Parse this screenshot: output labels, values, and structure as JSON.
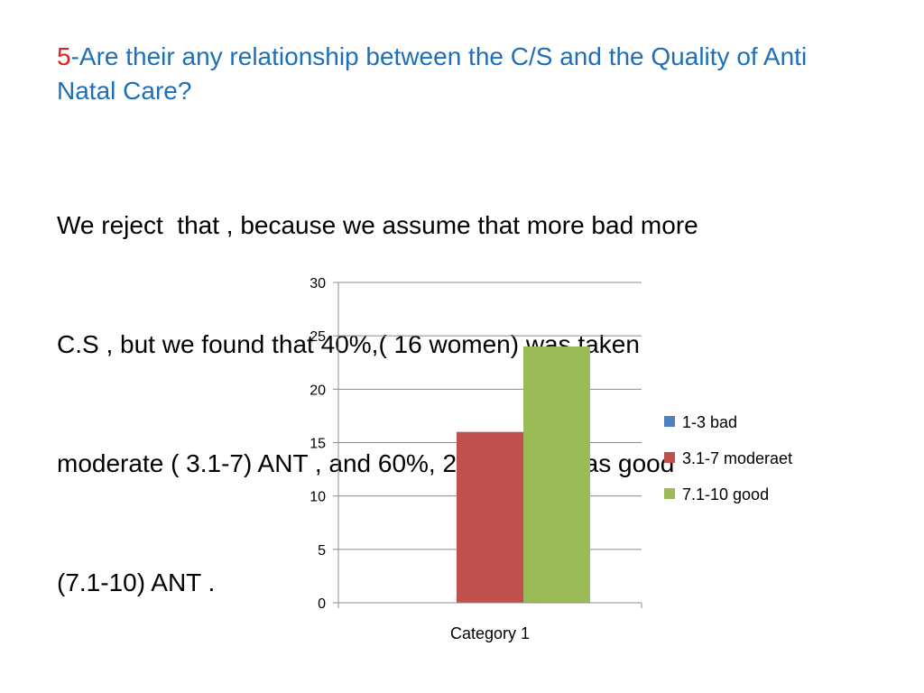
{
  "slide": {
    "title_number": "5",
    "title_text": "-Are their any relationship between the C/S and the Quality of Anti Natal Care?",
    "body_lines": [
      "We reject  that , because we assume that more bad more",
      "C.S , but we found that 40%,( 16 women) was taken",
      "moderate ( 3.1-7) ANT , and 60%, 24 women was good",
      "(7.1-10) ANT ."
    ]
  },
  "chart_data": {
    "type": "bar",
    "categories": [
      "Category 1"
    ],
    "series": [
      {
        "name": "1-3 bad",
        "values": [
          0
        ],
        "color": "#4f81bd"
      },
      {
        "name": "3.1-7 moderaet",
        "values": [
          16
        ],
        "color": "#c0504d"
      },
      {
        "name": "7.1-10 good",
        "values": [
          24
        ],
        "color": "#9bbb59"
      }
    ],
    "title": "",
    "xlabel": "",
    "ylabel": "",
    "ylim": [
      0,
      30
    ],
    "yticks": [
      0,
      5,
      10,
      15,
      20,
      25,
      30
    ],
    "grid": true,
    "legend": "right"
  }
}
